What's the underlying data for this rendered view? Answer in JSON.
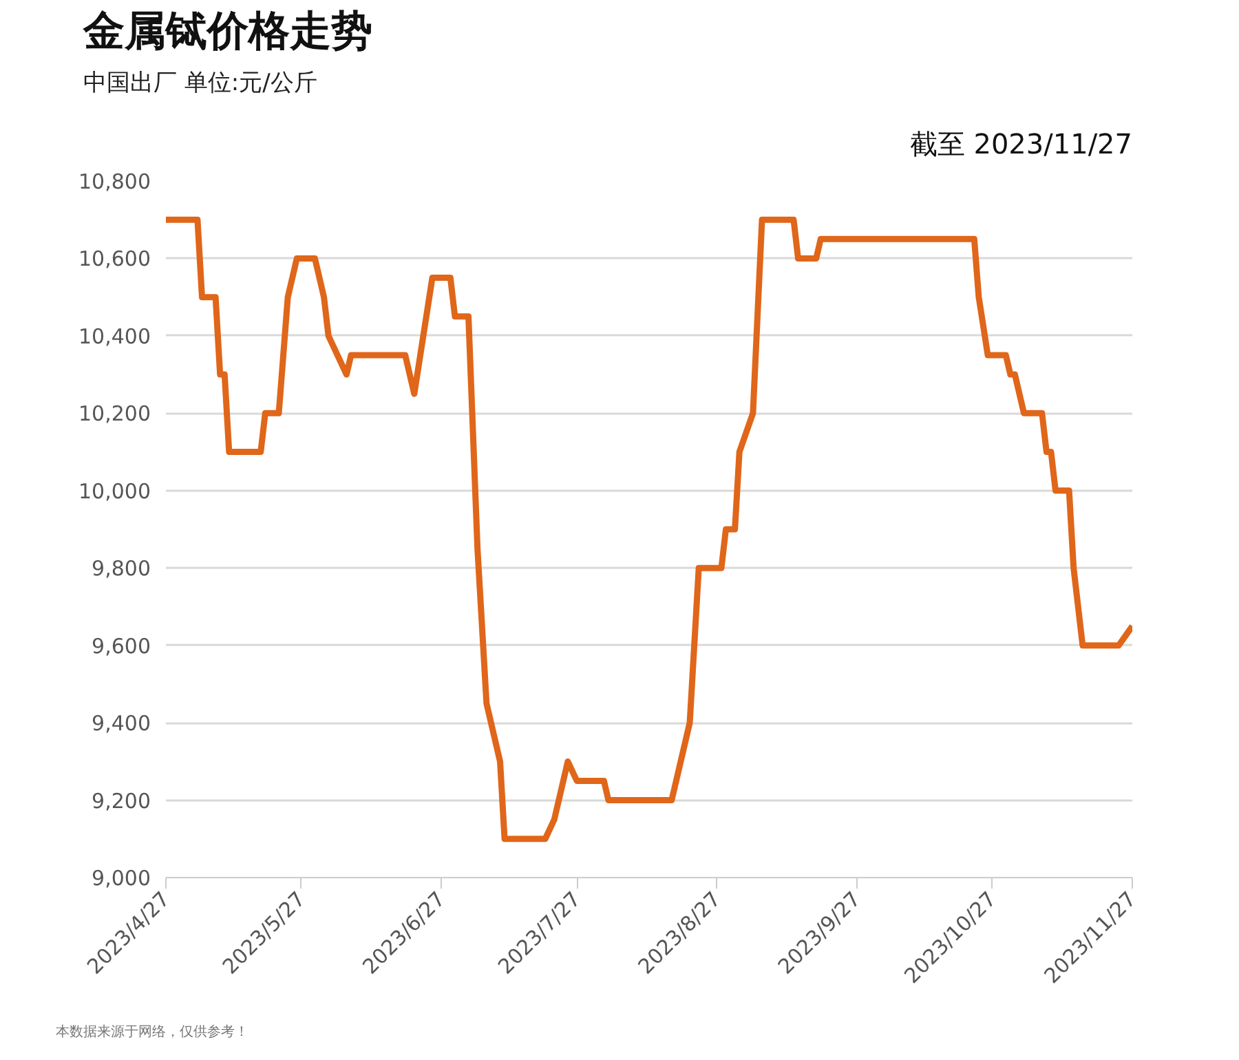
{
  "chart_data": {
    "type": "line",
    "title": "金属铽价格走势",
    "subtitle": "中国出厂 单位:元/公斤",
    "annotations": [
      "截至 2023/11/27",
      "本数据来源于网络，仅供参考！"
    ],
    "x": [
      "2023-04-27",
      "2023-05-04",
      "2023-05-05",
      "2023-05-08",
      "2023-05-09",
      "2023-05-10",
      "2023-05-11",
      "2023-05-18",
      "2023-05-19",
      "2023-05-22",
      "2023-05-24",
      "2023-05-26",
      "2023-05-30",
      "2023-06-01",
      "2023-06-02",
      "2023-06-06",
      "2023-06-07",
      "2023-06-19",
      "2023-06-21",
      "2023-06-25",
      "2023-06-29",
      "2023-06-30",
      "2023-07-03",
      "2023-07-05",
      "2023-07-07",
      "2023-07-10",
      "2023-07-11",
      "2023-07-20",
      "2023-07-22",
      "2023-07-25",
      "2023-07-27",
      "2023-08-02",
      "2023-08-03",
      "2023-08-17",
      "2023-08-21",
      "2023-08-23",
      "2023-08-28",
      "2023-08-29",
      "2023-08-31",
      "2023-09-01",
      "2023-09-04",
      "2023-09-06",
      "2023-09-13",
      "2023-09-14",
      "2023-09-18",
      "2023-09-19",
      "2023-10-23",
      "2023-10-24",
      "2023-10-26",
      "2023-10-30",
      "2023-10-31",
      "2023-11-01",
      "2023-11-03",
      "2023-11-07",
      "2023-11-08",
      "2023-11-09",
      "2023-11-10",
      "2023-11-13",
      "2023-11-14",
      "2023-11-16",
      "2023-11-24",
      "2023-11-27"
    ],
    "series": [
      {
        "color": "#e0661a",
        "values": [
          10700,
          10700,
          10500,
          10500,
          10300,
          10300,
          10100,
          10100,
          10200,
          10200,
          10500,
          10600,
          10600,
          10500,
          10400,
          10300,
          10350,
          10350,
          10250,
          10550,
          10550,
          10450,
          10450,
          9850,
          9450,
          9300,
          9100,
          9100,
          9150,
          9300,
          9250,
          9250,
          9200,
          9200,
          9400,
          9800,
          9800,
          9900,
          9900,
          10100,
          10200,
          10700,
          10700,
          10600,
          10600,
          10650,
          10650,
          10500,
          10350,
          10350,
          10300,
          10300,
          10200,
          10200,
          10100,
          10100,
          10000,
          10000,
          9800,
          9600,
          9600,
          9650
        ]
      }
    ],
    "xlim": [
      "2023-04-27",
      "2023-11-27"
    ],
    "xticks": [
      {
        "value": "2023-04-27",
        "label": "2023/4/27"
      },
      {
        "value": "2023-05-27",
        "label": "2023/5/27"
      },
      {
        "value": "2023-06-27",
        "label": "2023/6/27"
      },
      {
        "value": "2023-07-27",
        "label": "2023/7/27"
      },
      {
        "value": "2023-08-27",
        "label": "2023/8/27"
      },
      {
        "value": "2023-09-27",
        "label": "2023/9/27"
      },
      {
        "value": "2023-10-27",
        "label": "2023/10/27"
      },
      {
        "value": "2023-11-27",
        "label": "2023/11/27"
      }
    ],
    "ylim": [
      9000,
      10800
    ],
    "yticks": [
      {
        "value": 9000,
        "label": "9,000"
      },
      {
        "value": 9200,
        "label": "9,200"
      },
      {
        "value": 9400,
        "label": "9,400"
      },
      {
        "value": 9600,
        "label": "9,600"
      },
      {
        "value": 9800,
        "label": "9,800"
      },
      {
        "value": 10000,
        "label": "10,000"
      },
      {
        "value": 10200,
        "label": "10,200"
      },
      {
        "value": 10400,
        "label": "10,400"
      },
      {
        "value": 10600,
        "label": "10,600"
      },
      {
        "value": 10800,
        "label": "10,800"
      }
    ],
    "grid": "y",
    "marker": "none",
    "line_style": "solid"
  }
}
